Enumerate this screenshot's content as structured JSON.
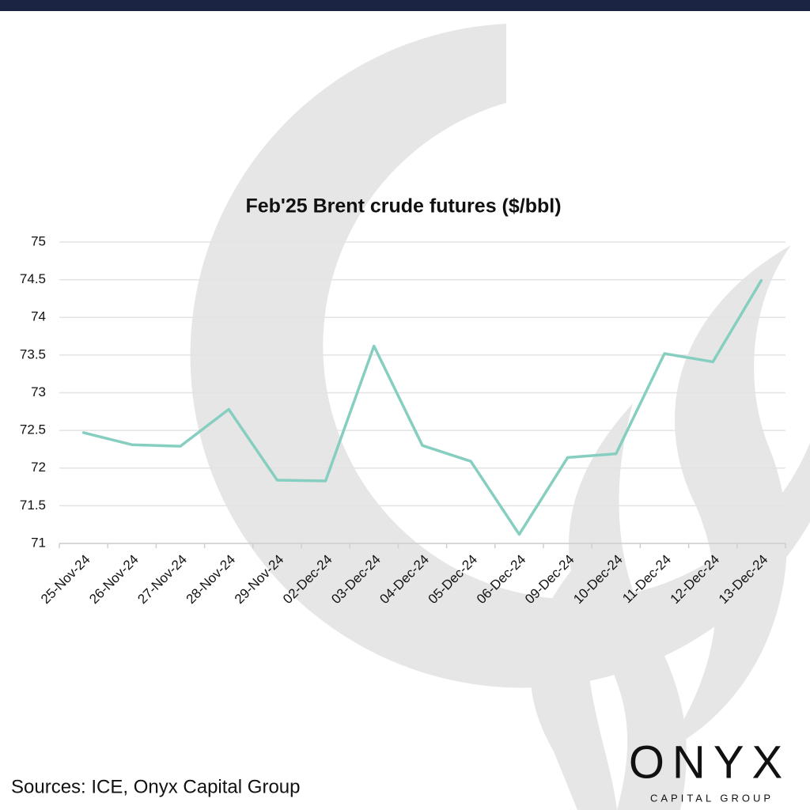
{
  "chart_data": {
    "type": "line",
    "title": "Feb'25 Brent crude futures ($/bbl)",
    "categories": [
      "25-Nov-24",
      "26-Nov-24",
      "27-Nov-24",
      "28-Nov-24",
      "29-Nov-24",
      "02-Dec-24",
      "03-Dec-24",
      "04-Dec-24",
      "05-Dec-24",
      "06-Dec-24",
      "09-Dec-24",
      "10-Dec-24",
      "11-Dec-24",
      "12-Dec-24",
      "13-Dec-24"
    ],
    "values": [
      72.47,
      72.31,
      72.29,
      72.78,
      71.84,
      71.83,
      73.62,
      72.3,
      72.09,
      71.12,
      72.14,
      72.19,
      73.52,
      73.41,
      74.49
    ],
    "color": "#86cfc0",
    "ylim": [
      71,
      75
    ],
    "yticks": [
      71,
      71.5,
      72,
      72.5,
      73,
      73.5,
      74,
      74.5,
      75
    ],
    "grid": true,
    "source": "Sources: ICE, Onyx Capital Group"
  },
  "logo": {
    "name": "ONYX",
    "tagline": "CAPITAL GROUP"
  }
}
